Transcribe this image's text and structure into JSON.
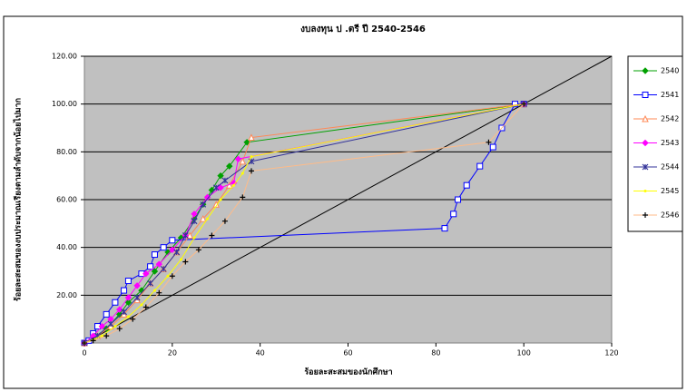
{
  "chart_data": {
    "type": "line",
    "title": "งบลงทุน ป .ตรี ปี 2540-2546",
    "x_label": "ร้อยละสะสมของนักศึกษา",
    "y_label": "ร้อยละสะสมของงบประมาณเรียงตามลำดับจากน้อยไปมาก",
    "xlim": [
      0,
      120
    ],
    "ylim": [
      0,
      120
    ],
    "xticks": [
      0,
      20,
      40,
      60,
      80,
      100,
      120
    ],
    "yticks": [
      {
        "value": 20,
        "label": "20.00"
      },
      {
        "value": 40,
        "label": "40.00"
      },
      {
        "value": 60,
        "label": "60.00"
      },
      {
        "value": 80,
        "label": "80.00"
      },
      {
        "value": 100,
        "label": "100.00"
      },
      {
        "value": 120,
        "label": "120.00"
      }
    ],
    "grid": true,
    "legend": "right",
    "series": [
      {
        "name": "2540",
        "color": "#00a000",
        "marker": "diamond",
        "x": [
          0,
          2,
          5,
          8,
          10,
          13,
          16,
          19,
          22,
          25,
          27,
          29,
          31,
          33,
          37,
          100
        ],
        "values": [
          0,
          2,
          6,
          12,
          17,
          22,
          30,
          38,
          44,
          52,
          58,
          64,
          70,
          74,
          84,
          100
        ]
      },
      {
        "name": "2541",
        "color": "#0000ff",
        "marker": "square",
        "x": [
          0,
          1,
          2,
          3,
          5,
          7,
          9,
          10,
          13,
          15,
          16,
          18,
          20,
          82,
          84,
          85,
          87,
          90,
          93,
          95,
          98,
          100
        ],
        "values": [
          0,
          1,
          4,
          7,
          12,
          17,
          22,
          26,
          29,
          32,
          37,
          40,
          43,
          48,
          54,
          60,
          66,
          74,
          82,
          90,
          100,
          100
        ]
      },
      {
        "name": "2542",
        "color": "#ff8855",
        "marker": "triangle",
        "x": [
          0,
          3,
          6,
          9,
          12,
          15,
          18,
          21,
          24,
          27,
          30,
          33,
          36,
          38,
          100
        ],
        "values": [
          0,
          3,
          7,
          12,
          18,
          25,
          31,
          38,
          45,
          52,
          58,
          66,
          76,
          86,
          100
        ]
      },
      {
        "name": "2543",
        "color": "#ff00ff",
        "marker": "diamond",
        "x": [
          0,
          2,
          4,
          6,
          8,
          10,
          12,
          14,
          17,
          20,
          23,
          25,
          28,
          31,
          34,
          35,
          100
        ],
        "values": [
          0,
          3,
          7,
          10,
          14,
          19,
          24,
          29,
          33,
          39,
          45,
          54,
          61,
          65,
          67,
          77,
          100
        ]
      },
      {
        "name": "2544",
        "color": "#333399",
        "marker": "asterisk",
        "x": [
          0,
          3,
          6,
          9,
          12,
          15,
          18,
          21,
          23,
          25,
          27,
          30,
          32,
          38,
          100
        ],
        "values": [
          0,
          3,
          8,
          13,
          19,
          25,
          31,
          38,
          45,
          51,
          58,
          65,
          68,
          76,
          100
        ]
      },
      {
        "name": "2545",
        "color": "#ffff00",
        "marker": "none",
        "x": [
          0,
          4,
          7,
          10,
          13,
          16,
          19,
          22,
          25,
          28,
          31,
          34,
          36,
          38,
          100
        ],
        "values": [
          0,
          3,
          7,
          11,
          16,
          22,
          28,
          35,
          44,
          52,
          60,
          66,
          71,
          78,
          100
        ]
      },
      {
        "name": "2546",
        "color": "#ffbb88",
        "marker": "cross",
        "x": [
          0,
          2,
          5,
          8,
          11,
          14,
          17,
          20,
          23,
          26,
          29,
          32,
          36,
          38,
          92,
          100
        ],
        "values": [
          0,
          1,
          3,
          6,
          10,
          15,
          21,
          28,
          34,
          39,
          45,
          51,
          61,
          72,
          84,
          100
        ]
      }
    ]
  }
}
